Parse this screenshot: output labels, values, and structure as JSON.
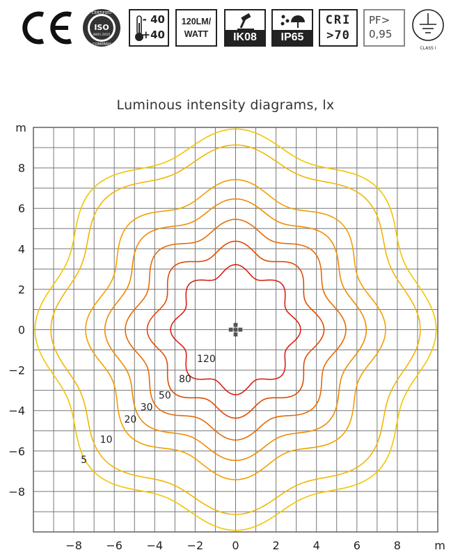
{
  "badges": {
    "ce": "CE",
    "iso": {
      "ring_top": "CERTIFIED",
      "center": "ISO",
      "code": "9001:2015",
      "ring_bottom": "COMPANY"
    },
    "temperature": {
      "low": "- 40",
      "high": "+40"
    },
    "efficacy": {
      "line1": "120LM/",
      "line2": "WATT"
    },
    "ik": "IK08",
    "ip": "IP65",
    "cri": {
      "line1": "CRI",
      "line2": ">70"
    },
    "pf": {
      "line1": "PF>",
      "line2": "0,95"
    },
    "class": "CLASS I"
  },
  "chart_data": {
    "type": "contour",
    "title": "Luminous intensity diagrams, lx",
    "xlabel": "m",
    "ylabel": "m",
    "xlim": [
      -10,
      10
    ],
    "ylim": [
      -10,
      10
    ],
    "x_ticks": [
      -8,
      -6,
      -4,
      -2,
      0,
      2,
      4,
      6,
      8
    ],
    "y_ticks": [
      8,
      6,
      4,
      2,
      0,
      -2,
      -4,
      -6,
      -8
    ],
    "x_tick_labels": [
      "−8",
      "−6",
      "−4",
      "−2",
      "0",
      "2",
      "4",
      "6",
      "8"
    ],
    "y_tick_labels": [
      "8",
      "6",
      "4",
      "2",
      "0",
      "−2",
      "−4",
      "−6",
      "−8"
    ],
    "grid": true,
    "grid_step": 1,
    "series": [
      {
        "name": "5",
        "radius": 9.45,
        "ripple": 0.05,
        "color": "#f2c500",
        "label_pos": [
          -7.5,
          -6.6
        ]
      },
      {
        "name": "10",
        "radius": 8.7,
        "ripple": 0.05,
        "color": "#f4b400",
        "label_pos": [
          -6.4,
          -5.6
        ]
      },
      {
        "name": "20",
        "radius": 7.0,
        "ripple": 0.06,
        "color": "#f29f00",
        "label_pos": [
          -5.2,
          -4.6
        ]
      },
      {
        "name": "30",
        "radius": 6.1,
        "ripple": 0.06,
        "color": "#ef8a00",
        "label_pos": [
          -4.4,
          -4.0
        ]
      },
      {
        "name": "50",
        "radius": 5.1,
        "ripple": 0.07,
        "color": "#ea6a00",
        "label_pos": [
          -3.5,
          -3.4
        ]
      },
      {
        "name": "80",
        "radius": 4.05,
        "ripple": 0.08,
        "color": "#e04a00",
        "label_pos": [
          -2.5,
          -2.6
        ]
      },
      {
        "name": "120",
        "radius": 2.95,
        "ripple": 0.09,
        "color": "#d42016",
        "label_pos": [
          -1.45,
          -1.6
        ]
      }
    ],
    "colors": {
      "grid": "#777777",
      "border": "#555555",
      "fixture": "#555555"
    }
  }
}
